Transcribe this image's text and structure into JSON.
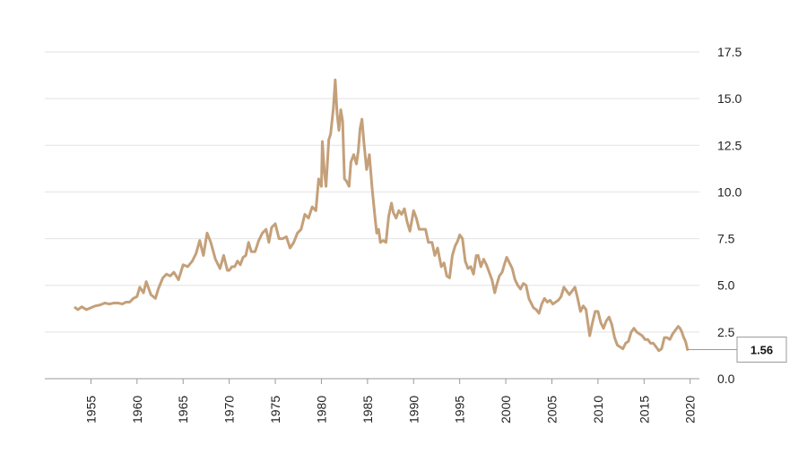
{
  "chart_data": {
    "type": "line",
    "title": "",
    "xlabel": "",
    "ylabel": "",
    "xlim": [
      1950,
      2021
    ],
    "ylim": [
      0,
      17.5
    ],
    "x_ticks": [
      "1955",
      "1960",
      "1965",
      "1970",
      "1975",
      "1980",
      "1985",
      "1990",
      "1995",
      "2000",
      "2005",
      "2010",
      "2015",
      "2020"
    ],
    "y_ticks": [
      "0.0",
      "2.5",
      "5.0",
      "7.5",
      "10.0",
      "12.5",
      "15.0",
      "17.5"
    ],
    "grid": true,
    "y_axis_side": "right",
    "line_color": "#C4A07A",
    "callout": {
      "label": "1.56",
      "value": 1.56
    },
    "series": [
      {
        "x": [
          1953.3,
          1953.6,
          1954.0,
          1954.5,
          1955.0,
          1955.5,
          1956.0,
          1956.5,
          1957.0,
          1957.5,
          1958.0,
          1958.4,
          1958.8,
          1959.2,
          1959.6,
          1960.0,
          1960.3,
          1960.7,
          1961.0,
          1961.5,
          1962.0,
          1962.3,
          1962.8,
          1963.2,
          1963.6,
          1964.0,
          1964.5,
          1965.0,
          1965.5,
          1966.0,
          1966.4,
          1966.8,
          1967.2,
          1967.6,
          1968.0,
          1968.5,
          1969.0,
          1969.4,
          1969.8,
          1970.0,
          1970.3,
          1970.6,
          1970.9,
          1971.2,
          1971.5,
          1971.8,
          1972.1,
          1972.4,
          1972.8,
          1973.2,
          1973.6,
          1974.0,
          1974.3,
          1974.6,
          1975.0,
          1975.4,
          1975.8,
          1976.2,
          1976.6,
          1977.0,
          1977.4,
          1977.8,
          1978.2,
          1978.6,
          1979.0,
          1979.4,
          1979.7,
          1980.0,
          1980.1,
          1980.3,
          1980.5,
          1980.8,
          1981.0,
          1981.3,
          1981.5,
          1981.7,
          1981.9,
          1982.1,
          1982.3,
          1982.5,
          1982.7,
          1983.0,
          1983.2,
          1983.5,
          1983.8,
          1984.0,
          1984.2,
          1984.4,
          1984.6,
          1984.9,
          1985.2,
          1985.5,
          1985.8,
          1986.0,
          1986.2,
          1986.4,
          1986.7,
          1987.0,
          1987.3,
          1987.6,
          1987.8,
          1988.1,
          1988.4,
          1988.7,
          1989.0,
          1989.3,
          1989.6,
          1990.0,
          1990.3,
          1990.6,
          1991.0,
          1991.3,
          1991.6,
          1992.0,
          1992.3,
          1992.6,
          1993.0,
          1993.3,
          1993.6,
          1993.9,
          1994.2,
          1994.5,
          1994.8,
          1995.0,
          1995.3,
          1995.6,
          1995.9,
          1996.2,
          1996.5,
          1996.8,
          1997.0,
          1997.3,
          1997.6,
          1997.9,
          1998.2,
          1998.5,
          1998.8,
          1999.0,
          1999.3,
          1999.6,
          1999.9,
          2000.1,
          2000.4,
          2000.7,
          2001.0,
          2001.3,
          2001.6,
          2001.9,
          2002.2,
          2002.5,
          2002.8,
          2003.0,
          2003.3,
          2003.6,
          2003.9,
          2004.2,
          2004.5,
          2004.8,
          2005.1,
          2005.4,
          2005.7,
          2006.0,
          2006.3,
          2006.6,
          2006.9,
          2007.2,
          2007.5,
          2007.8,
          2008.1,
          2008.4,
          2008.7,
          2008.9,
          2009.1,
          2009.4,
          2009.7,
          2010.0,
          2010.3,
          2010.6,
          2010.9,
          2011.2,
          2011.5,
          2011.8,
          2012.1,
          2012.4,
          2012.7,
          2013.0,
          2013.3,
          2013.6,
          2013.9,
          2014.2,
          2014.5,
          2014.8,
          2015.1,
          2015.4,
          2015.7,
          2016.0,
          2016.3,
          2016.6,
          2016.9,
          2017.2,
          2017.5,
          2017.8,
          2018.1,
          2018.4,
          2018.7,
          2018.9,
          2019.1,
          2019.3,
          2019.5,
          2019.7
        ],
        "y": [
          3.8,
          3.7,
          3.85,
          3.7,
          3.8,
          3.9,
          3.95,
          4.05,
          4.0,
          4.05,
          4.05,
          4.0,
          4.1,
          4.1,
          4.3,
          4.4,
          4.9,
          4.6,
          5.2,
          4.5,
          4.3,
          4.8,
          5.4,
          5.6,
          5.5,
          5.7,
          5.3,
          6.1,
          6.0,
          6.3,
          6.7,
          7.4,
          6.6,
          7.8,
          7.3,
          6.4,
          5.9,
          6.6,
          5.8,
          5.8,
          6.0,
          6.0,
          6.3,
          6.1,
          6.5,
          6.6,
          7.3,
          6.8,
          6.8,
          7.4,
          7.8,
          8.0,
          7.3,
          8.1,
          8.3,
          7.5,
          7.5,
          7.6,
          7.0,
          7.3,
          7.8,
          8.0,
          8.8,
          8.6,
          9.2,
          9.0,
          10.7,
          10.3,
          12.7,
          11.2,
          10.3,
          12.8,
          13.1,
          14.5,
          16.0,
          14.2,
          13.3,
          14.4,
          13.8,
          10.7,
          10.6,
          10.3,
          11.6,
          12.0,
          11.5,
          12.2,
          13.4,
          13.9,
          12.7,
          11.2,
          12.0,
          10.2,
          8.7,
          7.8,
          8.0,
          7.3,
          7.4,
          7.3,
          8.7,
          9.4,
          8.9,
          8.6,
          9.0,
          8.8,
          9.1,
          8.4,
          7.9,
          9.0,
          8.6,
          8.0,
          8.0,
          8.0,
          7.3,
          7.3,
          6.6,
          7.0,
          6.0,
          6.2,
          5.5,
          5.4,
          6.6,
          7.1,
          7.4,
          7.7,
          7.5,
          6.3,
          5.9,
          6.0,
          5.6,
          6.6,
          6.6,
          6.0,
          6.4,
          6.1,
          5.7,
          5.3,
          4.6,
          5.0,
          5.5,
          5.7,
          6.2,
          6.5,
          6.2,
          5.9,
          5.3,
          5.0,
          4.8,
          5.1,
          5.0,
          4.3,
          4.0,
          3.8,
          3.7,
          3.5,
          4.0,
          4.3,
          4.1,
          4.2,
          4.0,
          4.1,
          4.2,
          4.4,
          4.9,
          4.7,
          4.5,
          4.7,
          4.9,
          4.3,
          3.6,
          3.9,
          3.7,
          3.0,
          2.3,
          3.0,
          3.6,
          3.6,
          3.0,
          2.7,
          3.1,
          3.3,
          2.9,
          2.2,
          1.8,
          1.7,
          1.6,
          1.9,
          2.0,
          2.5,
          2.7,
          2.5,
          2.4,
          2.3,
          2.1,
          2.1,
          1.9,
          1.9,
          1.7,
          1.5,
          1.6,
          2.2,
          2.2,
          2.1,
          2.4,
          2.6,
          2.8,
          2.7,
          2.5,
          2.2,
          2.0,
          1.56
        ]
      }
    ]
  }
}
